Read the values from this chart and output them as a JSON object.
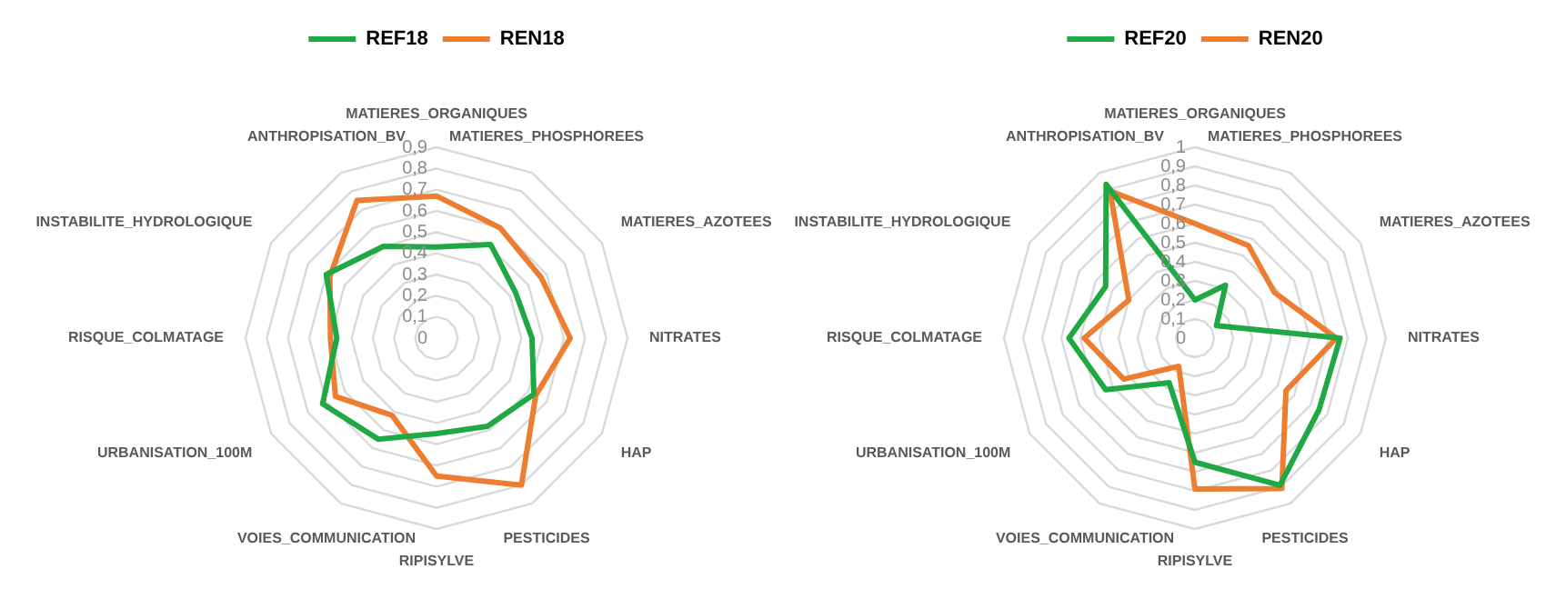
{
  "chart_data": [
    {
      "type": "radar",
      "categories": [
        "MATIERES_ORGANIQUES",
        "MATIERES_PHOSPHOREES",
        "MATIERES_AZOTEES",
        "NITRATES",
        "HAP",
        "PESTICIDES",
        "RIPISYLVE",
        "VOIES_COMMUNICATION",
        "URBANISATION_100M",
        "RISQUE_COLMATAGE",
        "INSTABILITE_HYDROLOGIQUE",
        "ANTHROPISATION_BV"
      ],
      "series": [
        {
          "name": "REF18",
          "color": "#1fa843",
          "values": [
            0.43,
            0.51,
            0.43,
            0.45,
            0.53,
            0.48,
            0.45,
            0.55,
            0.62,
            0.47,
            0.6,
            0.5
          ]
        },
        {
          "name": "REN18",
          "color": "#ed7d31",
          "values": [
            0.67,
            0.6,
            0.57,
            0.63,
            0.54,
            0.8,
            0.65,
            0.42,
            0.55,
            0.5,
            0.58,
            0.75
          ]
        }
      ],
      "ylim": [
        0,
        0.9
      ],
      "yticks": [
        {
          "value": 0,
          "label": "0"
        },
        {
          "value": 0.1,
          "label": "0,1"
        },
        {
          "value": 0.2,
          "label": "0,2"
        },
        {
          "value": 0.3,
          "label": "0,3"
        },
        {
          "value": 0.4,
          "label": "0,4"
        },
        {
          "value": 0.5,
          "label": "0,5"
        },
        {
          "value": 0.6,
          "label": "0,6"
        },
        {
          "value": 0.7,
          "label": "0,7"
        },
        {
          "value": 0.8,
          "label": "0,8"
        },
        {
          "value": 0.9,
          "label": "0,9"
        }
      ],
      "grid": true,
      "legend": "top",
      "marker": "none",
      "line_style": "solid"
    },
    {
      "type": "radar",
      "categories": [
        "MATIERES_ORGANIQUES",
        "MATIERES_PHOSPHOREES",
        "MATIERES_AZOTEES",
        "NITRATES",
        "HAP",
        "PESTICIDES",
        "RIPISYLVE",
        "VOIES_COMMUNICATION",
        "URBANISATION_100M",
        "RISQUE_COLMATAGE",
        "INSTABILITE_HYDROLOGIQUE",
        "ANTHROPISATION_BV"
      ],
      "series": [
        {
          "name": "REF20",
          "color": "#1fa843",
          "values": [
            0.2,
            0.32,
            0.13,
            0.76,
            0.75,
            0.89,
            0.65,
            0.27,
            0.54,
            0.66,
            0.54,
            0.93
          ]
        },
        {
          "name": "REN20",
          "color": "#ed7d31",
          "values": [
            0.6,
            0.56,
            0.48,
            0.74,
            0.55,
            0.91,
            0.79,
            0.17,
            0.43,
            0.58,
            0.4,
            0.89
          ]
        }
      ],
      "ylim": [
        0,
        1
      ],
      "yticks": [
        {
          "value": 0,
          "label": "0"
        },
        {
          "value": 0.1,
          "label": "0,1"
        },
        {
          "value": 0.2,
          "label": "0,2"
        },
        {
          "value": 0.3,
          "label": "0,3"
        },
        {
          "value": 0.4,
          "label": "0,4"
        },
        {
          "value": 0.5,
          "label": "0,5"
        },
        {
          "value": 0.6,
          "label": "0,6"
        },
        {
          "value": 0.7,
          "label": "0,7"
        },
        {
          "value": 0.8,
          "label": "0,8"
        },
        {
          "value": 0.9,
          "label": "0,9"
        },
        {
          "value": 1,
          "label": "1"
        }
      ],
      "grid": true,
      "legend": "top",
      "marker": "none",
      "line_style": "solid"
    }
  ]
}
